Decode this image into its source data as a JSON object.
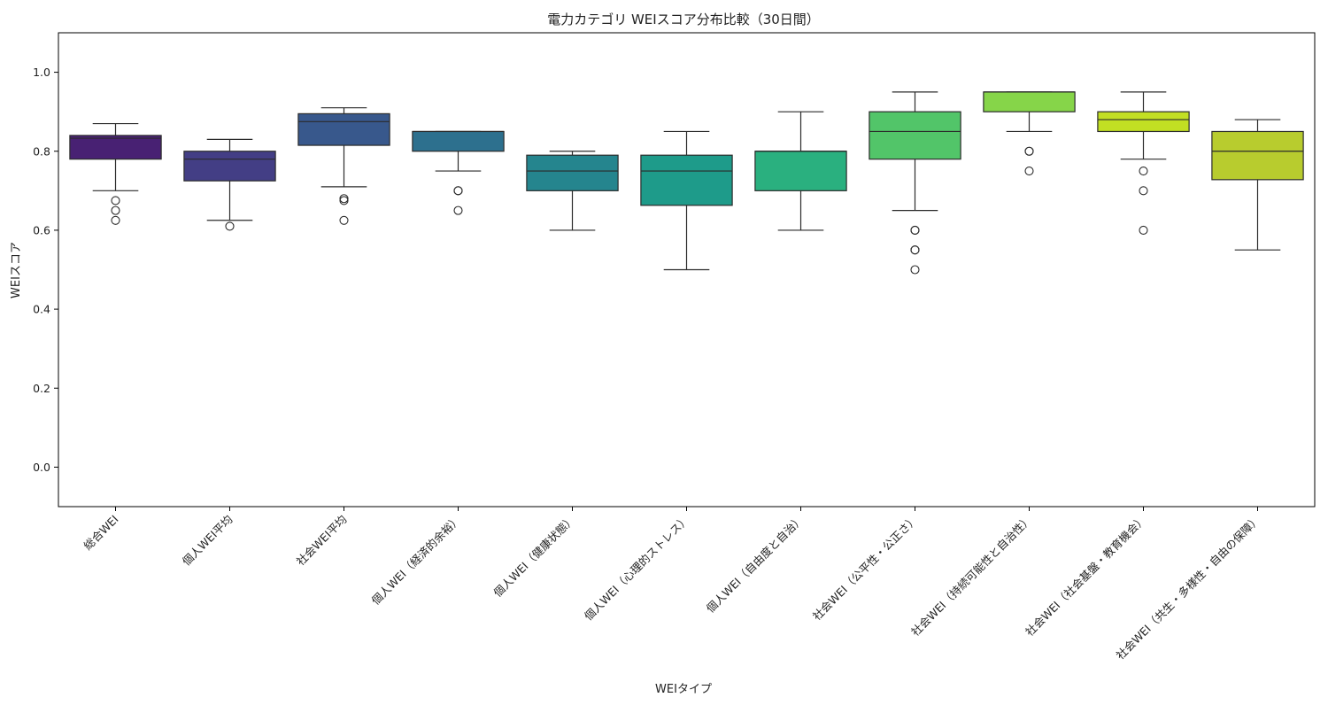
{
  "chart_data": {
    "type": "box",
    "title": "電力カテゴリ WEIスコア分布比較（30日間）",
    "xlabel": "WEIタイプ",
    "ylabel": "WEIスコア",
    "ylim": [
      -0.1,
      1.1
    ],
    "yticks": [
      0.0,
      0.2,
      0.4,
      0.6,
      0.8,
      1.0
    ],
    "ytick_labels": [
      "0.0",
      "0.2",
      "0.4",
      "0.6",
      "0.8",
      "1.0"
    ],
    "grid": false,
    "categories": [
      "総合WEI",
      "個人WEI平均",
      "社会WEI平均",
      "個人WEI（経済的余裕）",
      "個人WEI（健康状態）",
      "個人WEI（心理的ストレス）",
      "個人WEI（自由度と自治）",
      "社会WEI（公平性・公正さ）",
      "社会WEI（持続可能性と自治性）",
      "社会WEI（社会基盤・教育機会）",
      "社会WEI（共生・多様性・自由の保障）"
    ],
    "boxes": [
      {
        "whisker_low": 0.7,
        "q1": 0.78,
        "median": 0.833,
        "q3": 0.84,
        "whisker_high": 0.87,
        "outliers": [
          0.675,
          0.65,
          0.625
        ],
        "color": "#482173"
      },
      {
        "whisker_low": 0.625,
        "q1": 0.725,
        "median": 0.78,
        "q3": 0.8,
        "whisker_high": 0.83,
        "outliers": [
          0.61
        ],
        "color": "#433e85"
      },
      {
        "whisker_low": 0.71,
        "q1": 0.815,
        "median": 0.875,
        "q3": 0.895,
        "whisker_high": 0.91,
        "outliers": [
          0.68,
          0.675,
          0.625
        ],
        "color": "#38588c"
      },
      {
        "whisker_low": 0.75,
        "q1": 0.8,
        "median": 0.85,
        "q3": 0.85,
        "whisker_high": 0.85,
        "outliers": [
          0.7,
          0.7,
          0.65
        ],
        "color": "#2d708e"
      },
      {
        "whisker_low": 0.6,
        "q1": 0.7,
        "median": 0.75,
        "q3": 0.79,
        "whisker_high": 0.8,
        "outliers": [],
        "color": "#25858e"
      },
      {
        "whisker_low": 0.5,
        "q1": 0.663,
        "median": 0.75,
        "q3": 0.79,
        "whisker_high": 0.85,
        "outliers": [],
        "color": "#1e9b8a"
      },
      {
        "whisker_low": 0.6,
        "q1": 0.7,
        "median": 0.8,
        "q3": 0.8,
        "whisker_high": 0.9,
        "outliers": [],
        "color": "#2ab07f"
      },
      {
        "whisker_low": 0.65,
        "q1": 0.78,
        "median": 0.85,
        "q3": 0.9,
        "whisker_high": 0.95,
        "outliers": [
          0.6,
          0.6,
          0.55,
          0.55,
          0.5
        ],
        "color": "#52c569"
      },
      {
        "whisker_low": 0.85,
        "q1": 0.9,
        "median": 0.95,
        "q3": 0.95,
        "whisker_high": 0.95,
        "outliers": [
          0.8,
          0.8,
          0.75
        ],
        "color": "#86d549"
      },
      {
        "whisker_low": 0.78,
        "q1": 0.85,
        "median": 0.88,
        "q3": 0.9,
        "whisker_high": 0.95,
        "outliers": [
          0.75,
          0.7,
          0.6
        ],
        "color": "#c2df23"
      },
      {
        "whisker_low": 0.55,
        "q1": 0.728,
        "median": 0.8,
        "q3": 0.85,
        "whisker_high": 0.88,
        "outliers": [],
        "color": "#b8cc2e"
      }
    ]
  }
}
